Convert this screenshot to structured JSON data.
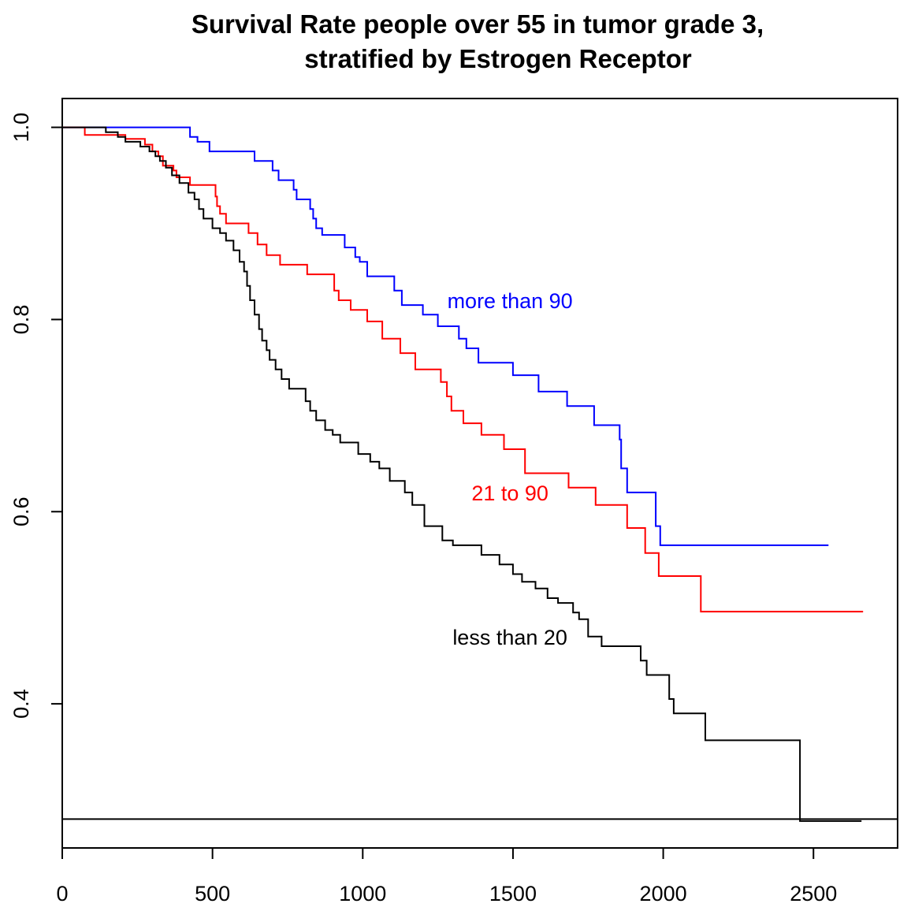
{
  "chart_data": {
    "type": "line",
    "title": "Survival Rate people over 55 in tumor grade 3,",
    "subtitle": "stratified by Estrogen Receptor",
    "xlabel": "",
    "ylabel": "",
    "xlim": [
      0,
      2780
    ],
    "ylim": [
      0.25,
      1.03
    ],
    "x_ticks": [
      0,
      500,
      1000,
      1500,
      2000,
      2500
    ],
    "x_tick_labels": [
      "0",
      "500",
      "1000",
      "1500",
      "2000",
      "2500"
    ],
    "y_ticks": [
      0.4,
      0.6,
      0.8,
      1.0
    ],
    "y_tick_labels": [
      "0.4",
      "0.6",
      "0.8",
      "1.0"
    ],
    "grid": false,
    "legend": "none",
    "reference_line_y": 0.28,
    "series": [
      {
        "name": "more than 90",
        "color": "#0000ff",
        "steps": [
          [
            0,
            1.0
          ],
          [
            425,
            0.99
          ],
          [
            450,
            0.985
          ],
          [
            490,
            0.975
          ],
          [
            640,
            0.965
          ],
          [
            700,
            0.955
          ],
          [
            720,
            0.945
          ],
          [
            770,
            0.935
          ],
          [
            780,
            0.925
          ],
          [
            825,
            0.915
          ],
          [
            835,
            0.905
          ],
          [
            845,
            0.895
          ],
          [
            865,
            0.888
          ],
          [
            940,
            0.875
          ],
          [
            975,
            0.865
          ],
          [
            990,
            0.86
          ],
          [
            1015,
            0.845
          ],
          [
            1105,
            0.83
          ],
          [
            1130,
            0.815
          ],
          [
            1200,
            0.805
          ],
          [
            1250,
            0.793
          ],
          [
            1320,
            0.78
          ],
          [
            1345,
            0.77
          ],
          [
            1385,
            0.755
          ],
          [
            1500,
            0.742
          ],
          [
            1585,
            0.725
          ],
          [
            1680,
            0.71
          ],
          [
            1770,
            0.69
          ],
          [
            1855,
            0.675
          ],
          [
            1860,
            0.645
          ],
          [
            1880,
            0.62
          ],
          [
            1975,
            0.585
          ],
          [
            1990,
            0.565
          ],
          [
            2550,
            0.565
          ]
        ]
      },
      {
        "name": "21 to 90",
        "color": "#ff0000",
        "steps": [
          [
            0,
            1.0
          ],
          [
            75,
            0.992
          ],
          [
            210,
            0.988
          ],
          [
            275,
            0.982
          ],
          [
            300,
            0.975
          ],
          [
            320,
            0.97
          ],
          [
            335,
            0.96
          ],
          [
            370,
            0.955
          ],
          [
            380,
            0.948
          ],
          [
            425,
            0.94
          ],
          [
            510,
            0.928
          ],
          [
            515,
            0.918
          ],
          [
            525,
            0.91
          ],
          [
            545,
            0.9
          ],
          [
            620,
            0.89
          ],
          [
            650,
            0.878
          ],
          [
            680,
            0.867
          ],
          [
            725,
            0.857
          ],
          [
            815,
            0.847
          ],
          [
            905,
            0.83
          ],
          [
            920,
            0.82
          ],
          [
            960,
            0.81
          ],
          [
            1015,
            0.798
          ],
          [
            1065,
            0.78
          ],
          [
            1125,
            0.765
          ],
          [
            1175,
            0.748
          ],
          [
            1260,
            0.735
          ],
          [
            1280,
            0.72
          ],
          [
            1295,
            0.705
          ],
          [
            1335,
            0.692
          ],
          [
            1395,
            0.68
          ],
          [
            1470,
            0.665
          ],
          [
            1540,
            0.64
          ],
          [
            1685,
            0.625
          ],
          [
            1775,
            0.607
          ],
          [
            1880,
            0.583
          ],
          [
            1940,
            0.557
          ],
          [
            1985,
            0.533
          ],
          [
            2125,
            0.496
          ],
          [
            2665,
            0.496
          ]
        ]
      },
      {
        "name": "less than 20",
        "color": "#000000",
        "steps": [
          [
            0,
            1.0
          ],
          [
            145,
            0.995
          ],
          [
            185,
            0.99
          ],
          [
            210,
            0.985
          ],
          [
            260,
            0.98
          ],
          [
            290,
            0.975
          ],
          [
            310,
            0.97
          ],
          [
            325,
            0.965
          ],
          [
            345,
            0.958
          ],
          [
            365,
            0.95
          ],
          [
            390,
            0.942
          ],
          [
            420,
            0.932
          ],
          [
            440,
            0.925
          ],
          [
            455,
            0.915
          ],
          [
            470,
            0.905
          ],
          [
            500,
            0.895
          ],
          [
            525,
            0.89
          ],
          [
            545,
            0.882
          ],
          [
            570,
            0.872
          ],
          [
            590,
            0.86
          ],
          [
            605,
            0.85
          ],
          [
            615,
            0.835
          ],
          [
            625,
            0.82
          ],
          [
            640,
            0.805
          ],
          [
            655,
            0.79
          ],
          [
            665,
            0.778
          ],
          [
            680,
            0.768
          ],
          [
            690,
            0.758
          ],
          [
            710,
            0.748
          ],
          [
            730,
            0.738
          ],
          [
            755,
            0.728
          ],
          [
            810,
            0.715
          ],
          [
            825,
            0.705
          ],
          [
            845,
            0.695
          ],
          [
            875,
            0.685
          ],
          [
            900,
            0.68
          ],
          [
            925,
            0.672
          ],
          [
            985,
            0.66
          ],
          [
            1025,
            0.652
          ],
          [
            1055,
            0.645
          ],
          [
            1090,
            0.632
          ],
          [
            1140,
            0.62
          ],
          [
            1165,
            0.607
          ],
          [
            1205,
            0.585
          ],
          [
            1265,
            0.57
          ],
          [
            1300,
            0.565
          ],
          [
            1395,
            0.555
          ],
          [
            1455,
            0.545
          ],
          [
            1500,
            0.535
          ],
          [
            1530,
            0.527
          ],
          [
            1575,
            0.52
          ],
          [
            1615,
            0.51
          ],
          [
            1650,
            0.505
          ],
          [
            1700,
            0.495
          ],
          [
            1720,
            0.488
          ],
          [
            1750,
            0.47
          ],
          [
            1795,
            0.46
          ],
          [
            1925,
            0.445
          ],
          [
            1945,
            0.43
          ],
          [
            2005,
            0.43
          ],
          [
            2020,
            0.405
          ],
          [
            2035,
            0.39
          ],
          [
            2140,
            0.362
          ],
          [
            2455,
            0.278
          ],
          [
            2660,
            0.278
          ]
        ]
      }
    ],
    "annotations": [
      {
        "text": "more than 90",
        "x": 1490,
        "y": 0.82,
        "color": "#0000ff"
      },
      {
        "text": "21 to 90",
        "x": 1490,
        "y": 0.62,
        "color": "#ff0000"
      },
      {
        "text": "less than 20",
        "x": 1490,
        "y": 0.47,
        "color": "#000000"
      }
    ]
  }
}
